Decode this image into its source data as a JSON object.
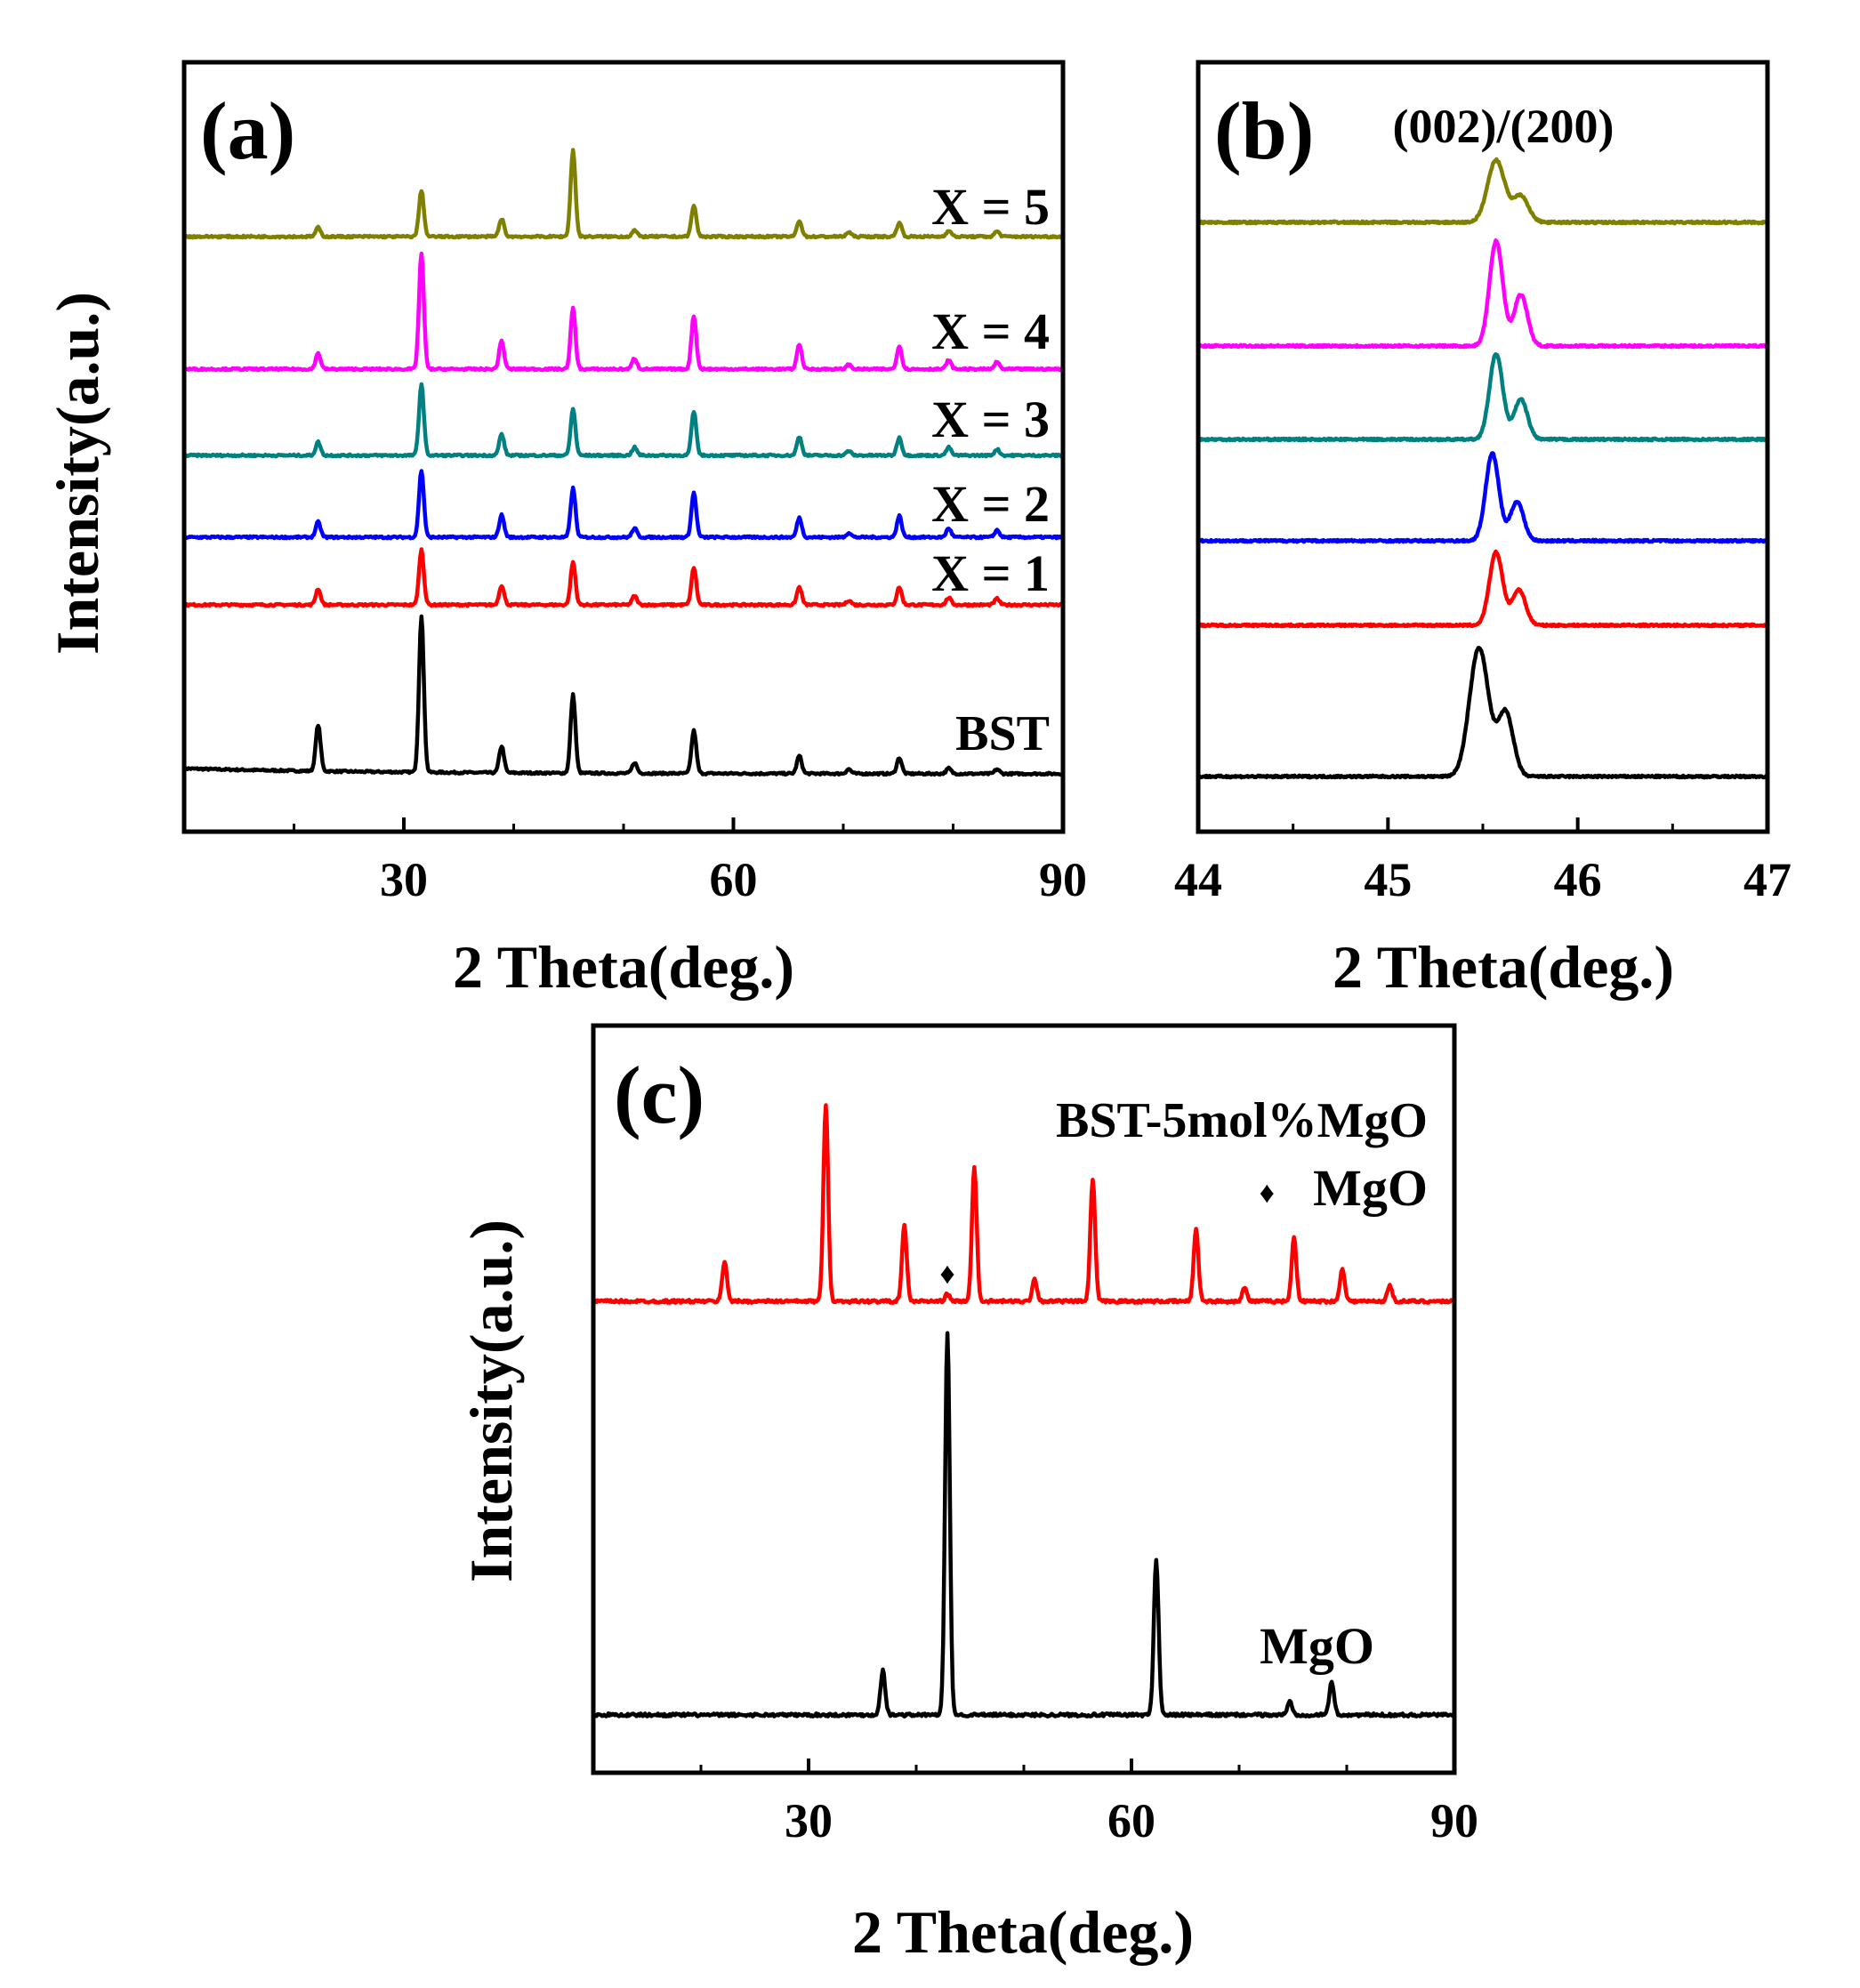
{
  "chart_data": [
    {
      "panel": "(a)",
      "type": "line",
      "xlabel": "2 Theta(deg.)",
      "ylabel": "Intensity(a.u.)",
      "xlim": [
        10,
        90
      ],
      "xticks": [
        30,
        60,
        90
      ],
      "xtick_labels": [
        "30",
        "60",
        "90"
      ],
      "series": [
        {
          "name": "BST",
          "label": "BST",
          "color": "#000000",
          "peaks": [
            [
              22.2,
              52
            ],
            [
              31.6,
              175
            ],
            [
              38.9,
              30
            ],
            [
              45.4,
              88
            ],
            [
              51,
              12
            ],
            [
              56.4,
              48
            ],
            [
              66,
              20
            ],
            [
              70.5,
              5
            ],
            [
              75.1,
              18
            ],
            [
              79.6,
              6
            ],
            [
              84,
              5
            ]
          ]
        },
        {
          "name": "X = 1",
          "label": "X = 1",
          "color": "#ff0000",
          "peaks": [
            [
              22.2,
              18
            ],
            [
              31.6,
              62
            ],
            [
              38.9,
              22
            ],
            [
              45.4,
              48
            ],
            [
              51,
              10
            ],
            [
              56.4,
              42
            ],
            [
              66,
              20
            ],
            [
              70.5,
              5
            ],
            [
              75.1,
              20
            ],
            [
              79.6,
              8
            ],
            [
              84,
              7
            ]
          ]
        },
        {
          "name": "X = 2",
          "label": "X = 2",
          "color": "#0000ff",
          "peaks": [
            [
              22.2,
              17
            ],
            [
              31.6,
              75
            ],
            [
              38.9,
              25
            ],
            [
              45.4,
              55
            ],
            [
              51,
              10
            ],
            [
              56.4,
              50
            ],
            [
              66,
              22
            ],
            [
              70.5,
              5
            ],
            [
              75.1,
              24
            ],
            [
              79.6,
              10
            ],
            [
              84,
              8
            ]
          ]
        },
        {
          "name": "X = 3",
          "label": "X = 3",
          "color": "#008080",
          "peaks": [
            [
              22.2,
              15
            ],
            [
              31.6,
              80
            ],
            [
              38.9,
              24
            ],
            [
              45.4,
              52
            ],
            [
              51,
              9
            ],
            [
              56.4,
              49
            ],
            [
              66,
              21
            ],
            [
              70.5,
              5
            ],
            [
              75.1,
              20
            ],
            [
              79.6,
              9
            ],
            [
              84,
              7
            ]
          ]
        },
        {
          "name": "X = 4",
          "label": "X = 4",
          "color": "#ff00ff",
          "peaks": [
            [
              22.2,
              18
            ],
            [
              31.6,
              130
            ],
            [
              38.9,
              32
            ],
            [
              45.4,
              68
            ],
            [
              51,
              12
            ],
            [
              56.4,
              60
            ],
            [
              66,
              28
            ],
            [
              70.5,
              5
            ],
            [
              75.1,
              26
            ],
            [
              79.6,
              10
            ],
            [
              84,
              8
            ]
          ]
        },
        {
          "name": "X = 5",
          "label": "X = 5",
          "color": "#808000",
          "peaks": [
            [
              22.2,
              10
            ],
            [
              31.6,
              52
            ],
            [
              38.9,
              20
            ],
            [
              45.4,
              97
            ],
            [
              51,
              7
            ],
            [
              56.4,
              35
            ],
            [
              66,
              18
            ],
            [
              70.5,
              5
            ],
            [
              75.1,
              16
            ],
            [
              79.6,
              7
            ],
            [
              84,
              6
            ]
          ]
        }
      ]
    },
    {
      "panel": "(b)",
      "type": "line",
      "annotation": "(002)/(200)",
      "xlabel": "2 Theta(deg.)",
      "xlim": [
        44,
        47
      ],
      "xticks": [
        44,
        45,
        46,
        47
      ],
      "xtick_labels": [
        "44",
        "45",
        "46",
        "47"
      ],
      "series": [
        {
          "name": "BST",
          "color": "#000000",
          "peaks": [
            [
              45.48,
              145,
              0.05
            ],
            [
              45.62,
              72,
              0.04
            ]
          ]
        },
        {
          "name": "X = 1",
          "color": "#ff0000",
          "peaks": [
            [
              45.57,
              82,
              0.035
            ],
            [
              45.69,
              40,
              0.035
            ]
          ]
        },
        {
          "name": "X = 2",
          "color": "#0000ff",
          "peaks": [
            [
              45.55,
              98,
              0.035
            ],
            [
              45.68,
              44,
              0.035
            ]
          ]
        },
        {
          "name": "X = 3",
          "color": "#008080",
          "peaks": [
            [
              45.57,
              96,
              0.035
            ],
            [
              45.7,
              45,
              0.035
            ]
          ]
        },
        {
          "name": "X = 4",
          "color": "#ff00ff",
          "peaks": [
            [
              45.57,
              118,
              0.035
            ],
            [
              45.7,
              58,
              0.035
            ]
          ]
        },
        {
          "name": "X = 5",
          "color": "#808000",
          "peaks": [
            [
              45.57,
              70,
              0.045
            ],
            [
              45.7,
              30,
              0.04
            ]
          ]
        }
      ]
    },
    {
      "panel": "(c)",
      "type": "line",
      "xlabel": "2 Theta(deg.)",
      "ylabel": "Intensity(a.u.)",
      "xlim": [
        10,
        90
      ],
      "xticks": [
        30,
        60,
        90
      ],
      "xtick_labels": [
        "30",
        "60",
        "90"
      ],
      "legend": {
        "marker": "♦",
        "label": "MgO"
      },
      "series": [
        {
          "name": "BST-5mol%MgO",
          "label": "BST-5mol%MgO",
          "color": "#ff0000",
          "peaks": [
            [
              22.2,
              45
            ],
            [
              31.6,
              220
            ],
            [
              38.9,
              85
            ],
            [
              42.9,
              8
            ],
            [
              45.4,
              150
            ],
            [
              51,
              25
            ],
            [
              56.4,
              137
            ],
            [
              66,
              82
            ],
            [
              70.5,
              15
            ],
            [
              75.1,
              72
            ],
            [
              79.6,
              37
            ],
            [
              84,
              18
            ]
          ],
          "marked_peaks": [
            42.9
          ]
        },
        {
          "name": "MgO",
          "label": "MgO",
          "color": "#000000",
          "peaks": [
            [
              36.9,
              50
            ],
            [
              42.9,
              430
            ],
            [
              62.3,
              175
            ],
            [
              74.7,
              15
            ],
            [
              78.6,
              37
            ]
          ]
        }
      ]
    }
  ]
}
